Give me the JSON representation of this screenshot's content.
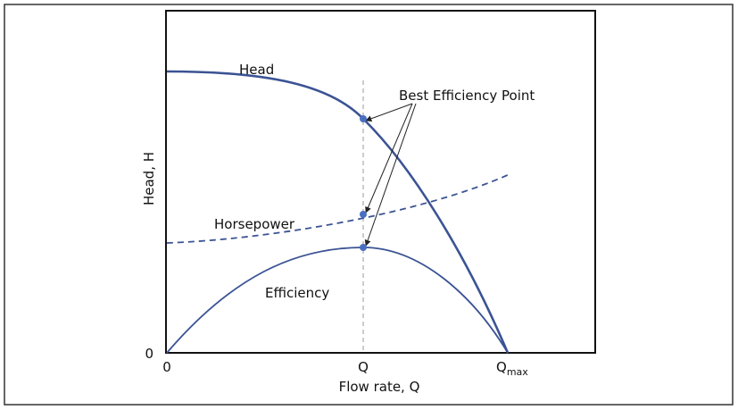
{
  "diagram": {
    "y_axis_label": "Head, H",
    "x_axis_label": "Flow rate, Q",
    "y_origin_label": "0",
    "x_ticks": [
      {
        "main": "0"
      },
      {
        "main": "Q"
      },
      {
        "main": "Q",
        "sub": "max"
      }
    ],
    "curves": [
      {
        "label": "Head"
      },
      {
        "label": "Horsepower"
      },
      {
        "label": "Efficiency"
      }
    ],
    "annotation": "Best Efficiency Point"
  }
}
